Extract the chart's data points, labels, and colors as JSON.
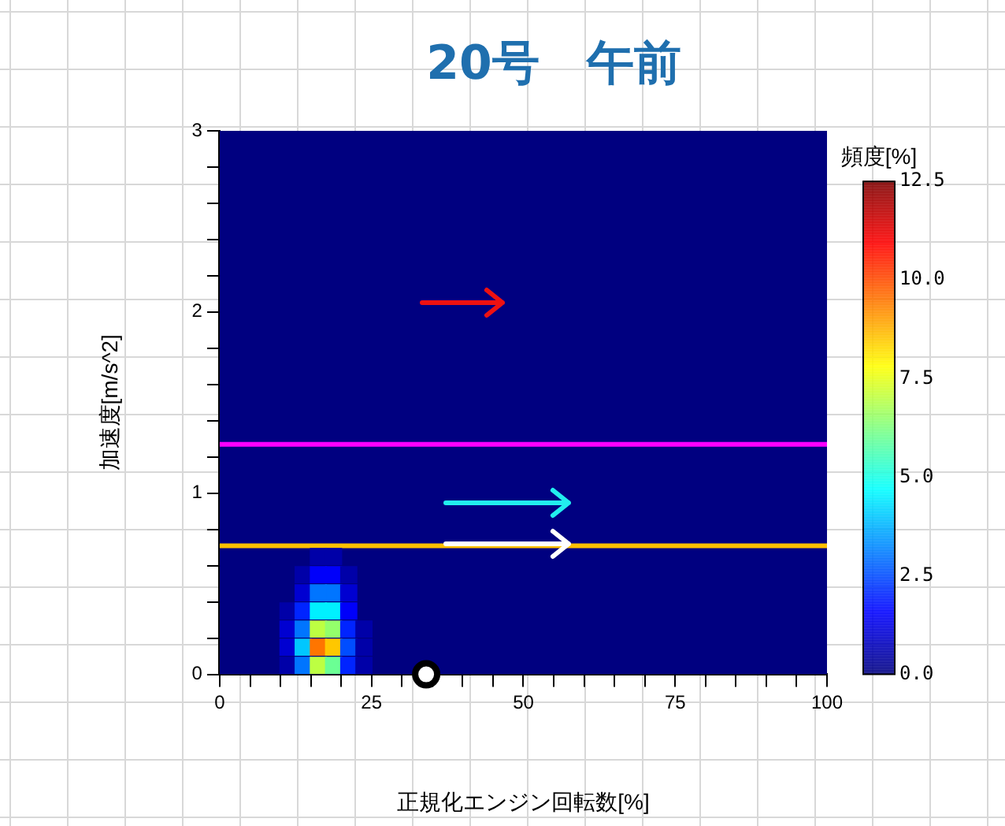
{
  "chart_data": {
    "type": "scatter",
    "title": "20号　午前",
    "xlabel": "正規化エンジン回転数[%]",
    "ylabel": "加速度[m/s^2]",
    "clabel": "頻度[%]",
    "series": [
      {
        "marker": "square",
        "x": [
          16.25,
          18.75,
          13.75,
          16.25,
          18.75,
          21.25,
          13.75,
          16.25,
          18.75,
          21.25,
          11.25,
          13.75,
          16.25,
          18.75,
          21.25,
          11.25,
          13.75,
          16.25,
          18.75,
          21.25,
          23.75,
          11.25,
          13.75,
          16.25,
          18.75,
          21.25,
          23.75,
          11.25,
          13.75,
          16.25,
          18.75,
          21.25,
          23.75
        ],
        "values": [
          0.65,
          0.65,
          0.55,
          0.55,
          0.55,
          0.55,
          0.45,
          0.45,
          0.45,
          0.45,
          0.35,
          0.35,
          0.35,
          0.35,
          0.35,
          0.25,
          0.25,
          0.25,
          0.25,
          0.25,
          0.25,
          0.15,
          0.15,
          0.15,
          0.15,
          0.15,
          0.15,
          0.05,
          0.05,
          0.05,
          0.05,
          0.05,
          0.05
        ],
        "cvalues": [
          0.5,
          0.5,
          0.5,
          1.5,
          1.5,
          0.5,
          1,
          3,
          3,
          1,
          0.5,
          2,
          4.5,
          4.5,
          1.5,
          1,
          3,
          7,
          6.5,
          2,
          0.5,
          1,
          4,
          9.5,
          8.5,
          2.5,
          0.5,
          0.5,
          3,
          7,
          6,
          2,
          0.5
        ],
        "colors": [
          "#0000a8",
          "#0000a8",
          "#0000a8",
          "#0000fa",
          "#0000fa",
          "#0000a8",
          "#0000d1",
          "#0075ff",
          "#0075ff",
          "#0000d1",
          "#0000a8",
          "#0024ff",
          "#00f0ff",
          "#00f0ff",
          "#0000fa",
          "#0000d1",
          "#0075ff",
          "#bdff42",
          "#94ff6b",
          "#0024ff",
          "#0000a8",
          "#0000d1",
          "#00c7ff",
          "#ff7500",
          "#ffc700",
          "#004dff",
          "#0000a8",
          "#0000a8",
          "#0075ff",
          "#bdff42",
          "#6bff94",
          "#0024ff",
          "#0000a8"
        ]
      },
      {
        "marker": "circle",
        "color": "#000000",
        "x": [
          34
        ],
        "values": [
          0
        ]
      }
    ],
    "xlim": [
      0,
      100
    ],
    "ylim": [
      0,
      3
    ],
    "xticks": [
      0,
      {
        "value": 5,
        "label": null
      },
      {
        "value": 10,
        "label": null
      },
      {
        "value": 15,
        "label": null
      },
      {
        "value": 20,
        "label": null
      },
      25,
      {
        "value": 30,
        "label": null
      },
      {
        "value": 35,
        "label": null
      },
      {
        "value": 40,
        "label": null
      },
      {
        "value": 45,
        "label": null
      },
      50,
      {
        "value": 55,
        "label": null
      },
      {
        "value": 60,
        "label": null
      },
      {
        "value": 65,
        "label": null
      },
      {
        "value": 70,
        "label": null
      },
      75,
      {
        "value": 80,
        "label": null
      },
      {
        "value": 85,
        "label": null
      },
      {
        "value": 90,
        "label": null
      },
      {
        "value": 95,
        "label": null
      },
      100
    ],
    "yticks": [
      0,
      {
        "value": 0.2,
        "label": null
      },
      {
        "value": 0.4,
        "label": null
      },
      {
        "value": 0.6,
        "label": null
      },
      {
        "value": 0.8,
        "label": null
      },
      1,
      {
        "value": 1.2,
        "label": null
      },
      {
        "value": 1.4,
        "label": null
      },
      {
        "value": 1.6,
        "label": null
      },
      {
        "value": 1.8,
        "label": null
      },
      2,
      {
        "value": 2.2,
        "label": null
      },
      {
        "value": 2.4,
        "label": null
      },
      {
        "value": 2.6,
        "label": null
      },
      {
        "value": 2.8,
        "label": null
      },
      3
    ],
    "clim": [
      0,
      12.5
    ],
    "cticks": [
      {
        "value": 0,
        "label": "0.0"
      },
      {
        "value": 2.5,
        "label": "2.5"
      },
      {
        "value": 5,
        "label": "5.0"
      },
      {
        "value": 7.5,
        "label": "7.5"
      },
      {
        "value": 10,
        "label": "10.0"
      },
      {
        "value": 12.5,
        "label": "12.5"
      }
    ],
    "ref_lines": [
      {
        "axis": "y",
        "value": 1.27,
        "color": "#ff00ff"
      },
      {
        "axis": "y",
        "value": 0.71,
        "color": "#ffc000"
      }
    ],
    "legend": false
  }
}
